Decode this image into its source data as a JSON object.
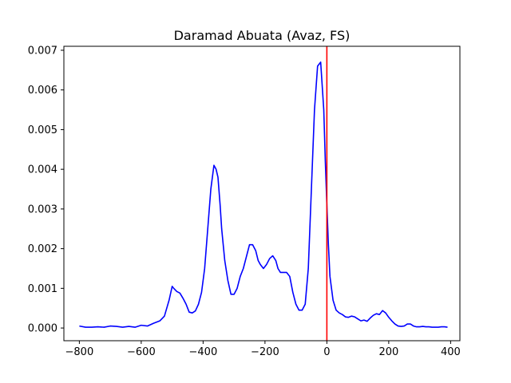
{
  "chart_data": {
    "type": "line",
    "title": "Daramad Abuata (Avaz, FS)",
    "xlabel": "",
    "ylabel": "",
    "xlim": [
      -850,
      430
    ],
    "ylim": [
      -0.00032,
      0.0071
    ],
    "xticks": [
      -800,
      -600,
      -400,
      -200,
      0,
      200,
      400
    ],
    "xtick_labels": [
      "−800",
      "−600",
      "−400",
      "−200",
      "0",
      "200",
      "400"
    ],
    "yticks": [
      0.0,
      0.001,
      0.002,
      0.003,
      0.004,
      0.005,
      0.006,
      0.007
    ],
    "ytick_labels": [
      "0.000",
      "0.001",
      "0.002",
      "0.003",
      "0.004",
      "0.005",
      "0.006",
      "0.007"
    ],
    "grid": false,
    "series": [
      {
        "color": "#0000ff",
        "x": [
          -800,
          -780,
          -760,
          -740,
          -720,
          -700,
          -680,
          -660,
          -640,
          -620,
          -600,
          -580,
          -560,
          -540,
          -525,
          -510,
          -500,
          -495,
          -485,
          -475,
          -465,
          -455,
          -445,
          -435,
          -425,
          -415,
          -405,
          -395,
          -385,
          -375,
          -365,
          -358,
          -352,
          -345,
          -340,
          -330,
          -320,
          -310,
          -300,
          -290,
          -280,
          -270,
          -260,
          -250,
          -240,
          -230,
          -222,
          -215,
          -205,
          -195,
          -185,
          -175,
          -165,
          -158,
          -150,
          -140,
          -130,
          -120,
          -110,
          -100,
          -90,
          -80,
          -70,
          -60,
          -50,
          -40,
          -30,
          -20,
          -10,
          -5,
          0,
          5,
          10,
          20,
          30,
          40,
          50,
          60,
          70,
          80,
          90,
          100,
          110,
          120,
          130,
          140,
          150,
          160,
          170,
          180,
          190,
          200,
          210,
          220,
          230,
          240,
          250,
          260,
          270,
          280,
          290,
          300,
          310,
          320,
          330,
          340,
          350,
          360,
          370,
          380,
          390
        ],
        "y": [
          5e-05,
          2e-05,
          2e-05,
          3e-05,
          2e-05,
          5e-05,
          4e-05,
          2e-05,
          4e-05,
          2e-05,
          7e-05,
          5e-05,
          0.00012,
          0.00018,
          0.0003,
          0.0007,
          0.00105,
          0.001,
          0.00092,
          0.00088,
          0.00075,
          0.0006,
          0.0004,
          0.00038,
          0.00043,
          0.0006,
          0.0009,
          0.0015,
          0.0025,
          0.0035,
          0.0041,
          0.004,
          0.0038,
          0.0031,
          0.0025,
          0.0017,
          0.0012,
          0.00085,
          0.00085,
          0.001,
          0.0013,
          0.0015,
          0.0018,
          0.0021,
          0.0021,
          0.00195,
          0.0017,
          0.0016,
          0.0015,
          0.0016,
          0.00175,
          0.00182,
          0.0017,
          0.0015,
          0.0014,
          0.0014,
          0.0014,
          0.0013,
          0.0009,
          0.0006,
          0.00045,
          0.00045,
          0.0006,
          0.0015,
          0.0035,
          0.0055,
          0.0066,
          0.0067,
          0.0055,
          0.0042,
          0.0031,
          0.0021,
          0.0013,
          0.0007,
          0.00045,
          0.00038,
          0.00034,
          0.00028,
          0.00027,
          0.0003,
          0.00028,
          0.00023,
          0.00018,
          0.0002,
          0.00017,
          0.00025,
          0.00032,
          0.00036,
          0.00034,
          0.00044,
          0.00038,
          0.00027,
          0.00018,
          0.0001,
          5e-05,
          4e-05,
          5e-05,
          0.0001,
          0.0001,
          5e-05,
          3e-05,
          3e-05,
          4e-05,
          3e-05,
          3e-05,
          2e-05,
          2e-05,
          2e-05,
          3e-05,
          3e-05,
          2e-05
        ]
      }
    ],
    "vlines": [
      {
        "x": 0,
        "color": "#ff0000"
      }
    ]
  }
}
